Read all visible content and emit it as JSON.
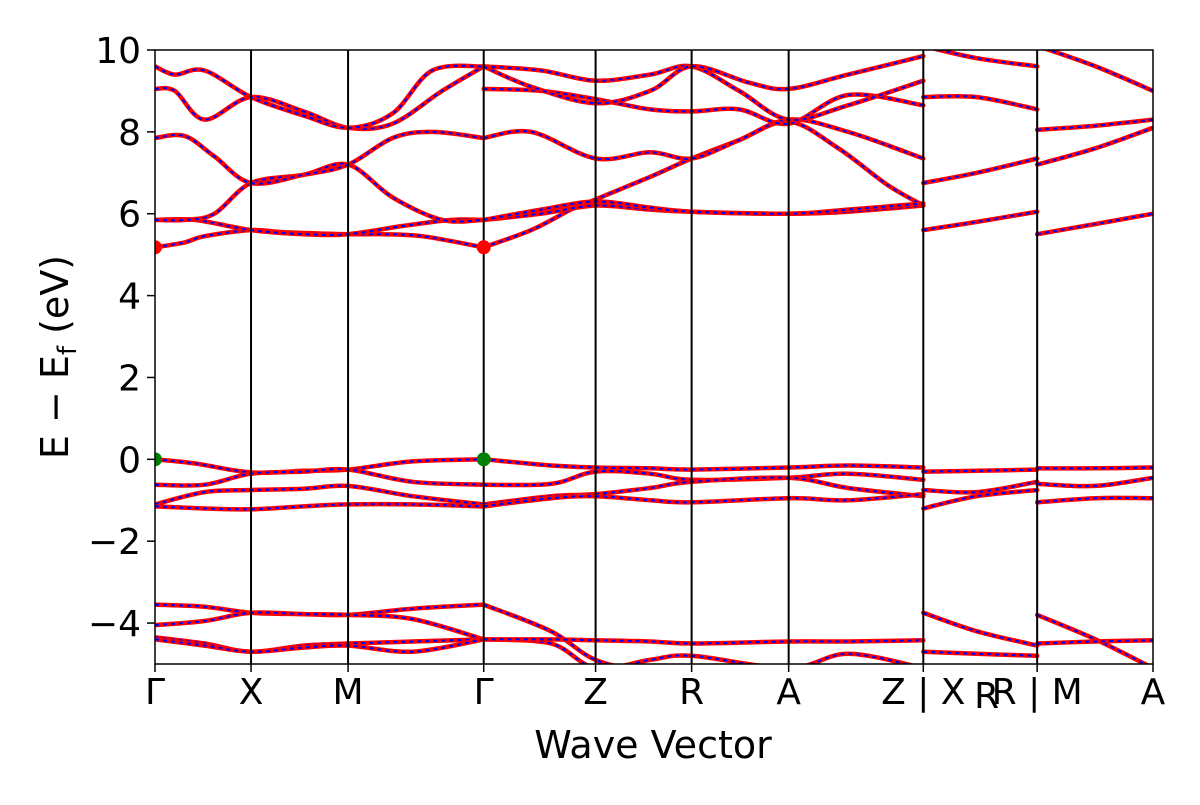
{
  "chart_data": {
    "type": "line",
    "xlabel": "Wave Vector",
    "ylabel": "E − E_f (eV)",
    "ylabel_main": "E − E",
    "ylabel_sub": "f",
    "ylabel_suffix": " (eV)",
    "ylim": [
      -5,
      10
    ],
    "yticks": [
      10,
      8,
      6,
      4,
      2,
      0,
      -2,
      -4
    ],
    "ytick_labels": [
      "10",
      "8",
      "6",
      "4",
      "2",
      "0",
      "−2",
      "−4"
    ],
    "xlim": [
      0,
      10.08
    ],
    "kpoints": [
      {
        "x": 0.0,
        "label": "Γ"
      },
      {
        "x": 0.97,
        "label": "X"
      },
      {
        "x": 1.95,
        "label": "M"
      },
      {
        "x": 3.32,
        "label": "Γ"
      },
      {
        "x": 4.45,
        "label": "Z"
      },
      {
        "x": 5.42,
        "label": "R"
      },
      {
        "x": 6.4,
        "label": "A"
      },
      {
        "x": 7.76,
        "label": "Z | X"
      },
      {
        "x": 8.91,
        "label": "R | M"
      },
      {
        "x": 10.08,
        "label": "A"
      }
    ],
    "extra_tick_labels": [
      {
        "x": 8.4,
        "label": "R"
      }
    ],
    "grid": false,
    "legend": "none",
    "colors": {
      "band_main": "#ff0000",
      "band_dash": "#0000ff",
      "cbm": "#ff0000",
      "vbm": "#008000",
      "line": "#000000"
    },
    "bands": [
      {
        "segment": 0,
        "x": [
          0,
          0.3,
          0.5,
          0.97,
          1.3,
          1.95,
          2.3,
          2.7,
          3.32
        ],
        "y": [
          5.18,
          5.3,
          5.45,
          5.6,
          5.55,
          5.5,
          5.5,
          5.45,
          5.18
        ]
      },
      {
        "segment": 0,
        "x": [
          0,
          0.4,
          0.97,
          1.5,
          1.95,
          2.5,
          3.0,
          3.32
        ],
        "y": [
          5.85,
          5.85,
          5.6,
          5.5,
          5.5,
          5.7,
          5.85,
          5.85
        ]
      },
      {
        "segment": 0,
        "x": [
          0,
          0.3,
          0.6,
          0.97,
          1.5,
          1.95,
          2.4,
          2.9,
          3.32
        ],
        "y": [
          5.85,
          5.85,
          6.0,
          6.75,
          6.95,
          7.2,
          6.4,
          5.85,
          5.85
        ]
      },
      {
        "segment": 0,
        "x": [
          0,
          0.3,
          0.6,
          0.97,
          1.5,
          1.95,
          2.4,
          2.8,
          3.32
        ],
        "y": [
          7.85,
          7.9,
          7.4,
          6.75,
          6.95,
          7.2,
          7.85,
          8.0,
          7.85
        ]
      },
      {
        "segment": 0,
        "x": [
          0,
          0.2,
          0.5,
          0.97,
          1.5,
          1.95,
          2.4,
          2.9,
          3.32
        ],
        "y": [
          9.05,
          9.0,
          8.3,
          8.85,
          8.5,
          8.1,
          8.2,
          9.0,
          9.6
        ]
      },
      {
        "segment": 0,
        "x": [
          0,
          0.2,
          0.5,
          0.97,
          1.5,
          1.95,
          2.4,
          2.8,
          3.32
        ],
        "y": [
          9.6,
          9.4,
          9.5,
          8.85,
          8.4,
          8.1,
          8.45,
          9.5,
          9.6
        ]
      },
      {
        "segment": 0,
        "x": [
          3.32,
          3.8,
          4.2,
          4.45,
          5.0,
          5.42,
          5.9,
          6.4,
          6.9,
          7.4,
          7.76
        ],
        "y": [
          5.18,
          5.6,
          6.1,
          6.35,
          6.9,
          7.35,
          7.8,
          8.25,
          7.6,
          6.7,
          6.2
        ]
      },
      {
        "segment": 0,
        "x": [
          3.32,
          3.9,
          4.45,
          5.0,
          5.42,
          6.4,
          7.0,
          7.76
        ],
        "y": [
          5.85,
          6.0,
          6.2,
          6.1,
          6.05,
          6.0,
          6.05,
          6.2
        ]
      },
      {
        "segment": 0,
        "x": [
          3.32,
          3.9,
          4.45,
          5.0,
          5.42,
          6.4,
          7.0,
          7.76
        ],
        "y": [
          5.85,
          6.1,
          6.3,
          6.15,
          6.05,
          6.0,
          6.1,
          6.25
        ]
      },
      {
        "segment": 0,
        "x": [
          3.32,
          3.8,
          4.45,
          5.0,
          5.42,
          5.9,
          6.4,
          7.0,
          7.76
        ],
        "y": [
          7.85,
          8.0,
          7.35,
          7.5,
          7.35,
          7.8,
          8.3,
          8.0,
          7.35
        ]
      },
      {
        "segment": 0,
        "x": [
          3.32,
          3.9,
          4.45,
          5.0,
          5.42,
          5.9,
          6.4,
          7.0,
          7.76
        ],
        "y": [
          9.05,
          9.0,
          8.8,
          8.55,
          8.5,
          8.55,
          8.2,
          8.9,
          8.65
        ]
      },
      {
        "segment": 0,
        "x": [
          3.32,
          3.9,
          4.45,
          5.0,
          5.42,
          5.9,
          6.4,
          7.0,
          7.76
        ],
        "y": [
          9.6,
          9.5,
          9.25,
          9.4,
          9.6,
          9.0,
          8.3,
          8.65,
          9.25
        ]
      },
      {
        "segment": 0,
        "x": [
          3.32,
          3.8,
          4.45,
          5.0,
          5.42,
          6.0,
          6.4,
          7.0,
          7.76
        ],
        "y": [
          9.6,
          9.1,
          8.7,
          9.0,
          9.6,
          9.2,
          9.05,
          9.4,
          9.85
        ]
      },
      {
        "segment": 1,
        "x": [
          7.76,
          8.3,
          8.91
        ],
        "y": [
          5.6,
          5.8,
          6.05
        ]
      },
      {
        "segment": 1,
        "x": [
          7.76,
          8.3,
          8.91
        ],
        "y": [
          6.75,
          7.0,
          7.35
        ]
      },
      {
        "segment": 1,
        "x": [
          7.76,
          8.3,
          8.91
        ],
        "y": [
          8.85,
          8.85,
          8.55
        ]
      },
      {
        "segment": 1,
        "x": [
          7.76,
          8.3,
          8.91
        ],
        "y": [
          10.1,
          9.8,
          9.6
        ]
      },
      {
        "segment": 2,
        "x": [
          8.91,
          9.5,
          10.08
        ],
        "y": [
          5.5,
          5.75,
          6.0
        ]
      },
      {
        "segment": 2,
        "x": [
          8.91,
          9.5,
          10.08
        ],
        "y": [
          7.2,
          7.6,
          8.1
        ]
      },
      {
        "segment": 2,
        "x": [
          8.91,
          9.5,
          10.08
        ],
        "y": [
          8.05,
          8.15,
          8.3
        ]
      },
      {
        "segment": 2,
        "x": [
          8.91,
          9.5,
          10.08
        ],
        "y": [
          10.1,
          9.6,
          9.0
        ]
      },
      {
        "segment": 0,
        "x": [
          0,
          0.4,
          0.97,
          1.5,
          1.95,
          2.6,
          3.32
        ],
        "y": [
          0.0,
          -0.1,
          -0.32,
          -0.28,
          -0.25,
          -0.05,
          0.0
        ]
      },
      {
        "segment": 0,
        "x": [
          0,
          0.5,
          0.97,
          1.5,
          1.95,
          2.6,
          3.32
        ],
        "y": [
          -0.62,
          -0.62,
          -0.35,
          -0.3,
          -0.25,
          -0.55,
          -0.62
        ]
      },
      {
        "segment": 0,
        "x": [
          0,
          0.5,
          0.97,
          1.5,
          1.95,
          2.6,
          3.32
        ],
        "y": [
          -1.1,
          -0.8,
          -0.75,
          -0.72,
          -0.65,
          -0.9,
          -1.1
        ]
      },
      {
        "segment": 0,
        "x": [
          0,
          0.5,
          0.97,
          1.5,
          1.95,
          2.6,
          3.32
        ],
        "y": [
          -1.15,
          -1.2,
          -1.22,
          -1.15,
          -1.1,
          -1.1,
          -1.15
        ]
      },
      {
        "segment": 0,
        "x": [
          3.32,
          4.0,
          4.45,
          5.0,
          5.42,
          6.4,
          7.0,
          7.76
        ],
        "y": [
          0.0,
          -0.15,
          -0.2,
          -0.22,
          -0.25,
          -0.2,
          -0.15,
          -0.2
        ]
      },
      {
        "segment": 0,
        "x": [
          3.32,
          4.0,
          4.45,
          5.0,
          5.42,
          6.4,
          7.0,
          7.76
        ],
        "y": [
          -0.62,
          -0.6,
          -0.3,
          -0.35,
          -0.5,
          -0.45,
          -0.35,
          -0.5
        ]
      },
      {
        "segment": 0,
        "x": [
          3.32,
          4.0,
          4.45,
          5.0,
          5.42,
          6.4,
          7.0,
          7.76
        ],
        "y": [
          -1.1,
          -0.9,
          -0.85,
          -0.7,
          -0.55,
          -0.45,
          -0.7,
          -0.9
        ]
      },
      {
        "segment": 0,
        "x": [
          3.32,
          4.0,
          4.45,
          5.0,
          5.42,
          6.4,
          7.0,
          7.76
        ],
        "y": [
          -1.15,
          -0.95,
          -0.9,
          -1.0,
          -1.05,
          -0.95,
          -1.0,
          -0.85
        ]
      },
      {
        "segment": 1,
        "x": [
          7.76,
          8.3,
          8.91
        ],
        "y": [
          -0.3,
          -0.28,
          -0.25
        ]
      },
      {
        "segment": 1,
        "x": [
          7.76,
          8.3,
          8.91
        ],
        "y": [
          -0.75,
          -0.8,
          -0.55
        ]
      },
      {
        "segment": 1,
        "x": [
          7.76,
          8.3,
          8.91
        ],
        "y": [
          -1.2,
          -0.9,
          -0.75
        ]
      },
      {
        "segment": 2,
        "x": [
          8.91,
          9.5,
          10.08
        ],
        "y": [
          -0.22,
          -0.22,
          -0.2
        ]
      },
      {
        "segment": 2,
        "x": [
          8.91,
          9.5,
          10.08
        ],
        "y": [
          -0.6,
          -0.65,
          -0.45
        ]
      },
      {
        "segment": 2,
        "x": [
          8.91,
          9.5,
          10.08
        ],
        "y": [
          -1.05,
          -0.95,
          -0.95
        ]
      },
      {
        "segment": 0,
        "x": [
          0,
          0.5,
          0.97,
          1.5,
          1.95,
          2.6,
          3.32
        ],
        "y": [
          -3.55,
          -3.6,
          -3.75,
          -3.78,
          -3.8,
          -3.65,
          -3.55
        ]
      },
      {
        "segment": 0,
        "x": [
          0,
          0.5,
          0.97,
          1.5,
          1.95,
          2.6,
          3.32
        ],
        "y": [
          -4.05,
          -3.95,
          -3.75,
          -3.78,
          -3.8,
          -3.9,
          -4.4
        ]
      },
      {
        "segment": 0,
        "x": [
          0,
          0.5,
          0.97,
          1.5,
          1.95,
          2.6,
          3.32
        ],
        "y": [
          -4.35,
          -4.5,
          -4.7,
          -4.55,
          -4.5,
          -4.45,
          -4.4
        ]
      },
      {
        "segment": 0,
        "x": [
          0,
          0.5,
          0.97,
          1.5,
          1.95,
          2.6,
          3.32
        ],
        "y": [
          -4.4,
          -4.55,
          -4.7,
          -4.6,
          -4.55,
          -4.7,
          -4.4
        ]
      },
      {
        "segment": 0,
        "x": [
          3.32,
          4.0,
          4.45,
          5.0,
          5.42,
          6.4,
          7.0,
          7.76
        ],
        "y": [
          -3.55,
          -4.2,
          -4.9,
          -5.2,
          -5.3,
          -5.3,
          -5.2,
          -5.2
        ]
      },
      {
        "segment": 0,
        "x": [
          3.32,
          4.0,
          4.45,
          5.0,
          5.42,
          6.4,
          7.0,
          7.76
        ],
        "y": [
          -4.4,
          -4.5,
          -5.1,
          -4.9,
          -4.8,
          -5.1,
          -4.75,
          -5.1
        ]
      },
      {
        "segment": 0,
        "x": [
          3.32,
          4.0,
          4.45,
          5.0,
          5.42,
          6.4,
          7.0,
          7.76
        ],
        "y": [
          -4.4,
          -4.4,
          -4.42,
          -4.45,
          -4.5,
          -4.45,
          -4.45,
          -4.42
        ]
      },
      {
        "segment": 1,
        "x": [
          7.76,
          8.3,
          8.91
        ],
        "y": [
          -3.75,
          -4.2,
          -4.55
        ]
      },
      {
        "segment": 1,
        "x": [
          7.76,
          8.3,
          8.91
        ],
        "y": [
          -4.7,
          -4.75,
          -4.8
        ]
      },
      {
        "segment": 2,
        "x": [
          8.91,
          9.5,
          10.08
        ],
        "y": [
          -3.8,
          -4.4,
          -5.1
        ]
      },
      {
        "segment": 2,
        "x": [
          8.91,
          9.5,
          10.08
        ],
        "y": [
          -4.5,
          -4.45,
          -4.42
        ]
      }
    ],
    "markers": [
      {
        "name": "cbm-marker",
        "x": 0.0,
        "y": 5.18,
        "color": "#ff0000"
      },
      {
        "name": "cbm-marker",
        "x": 3.32,
        "y": 5.18,
        "color": "#ff0000"
      },
      {
        "name": "vbm-marker",
        "x": 0.0,
        "y": 0.0,
        "color": "#008000"
      },
      {
        "name": "vbm-marker",
        "x": 3.32,
        "y": 0.0,
        "color": "#008000"
      }
    ]
  }
}
